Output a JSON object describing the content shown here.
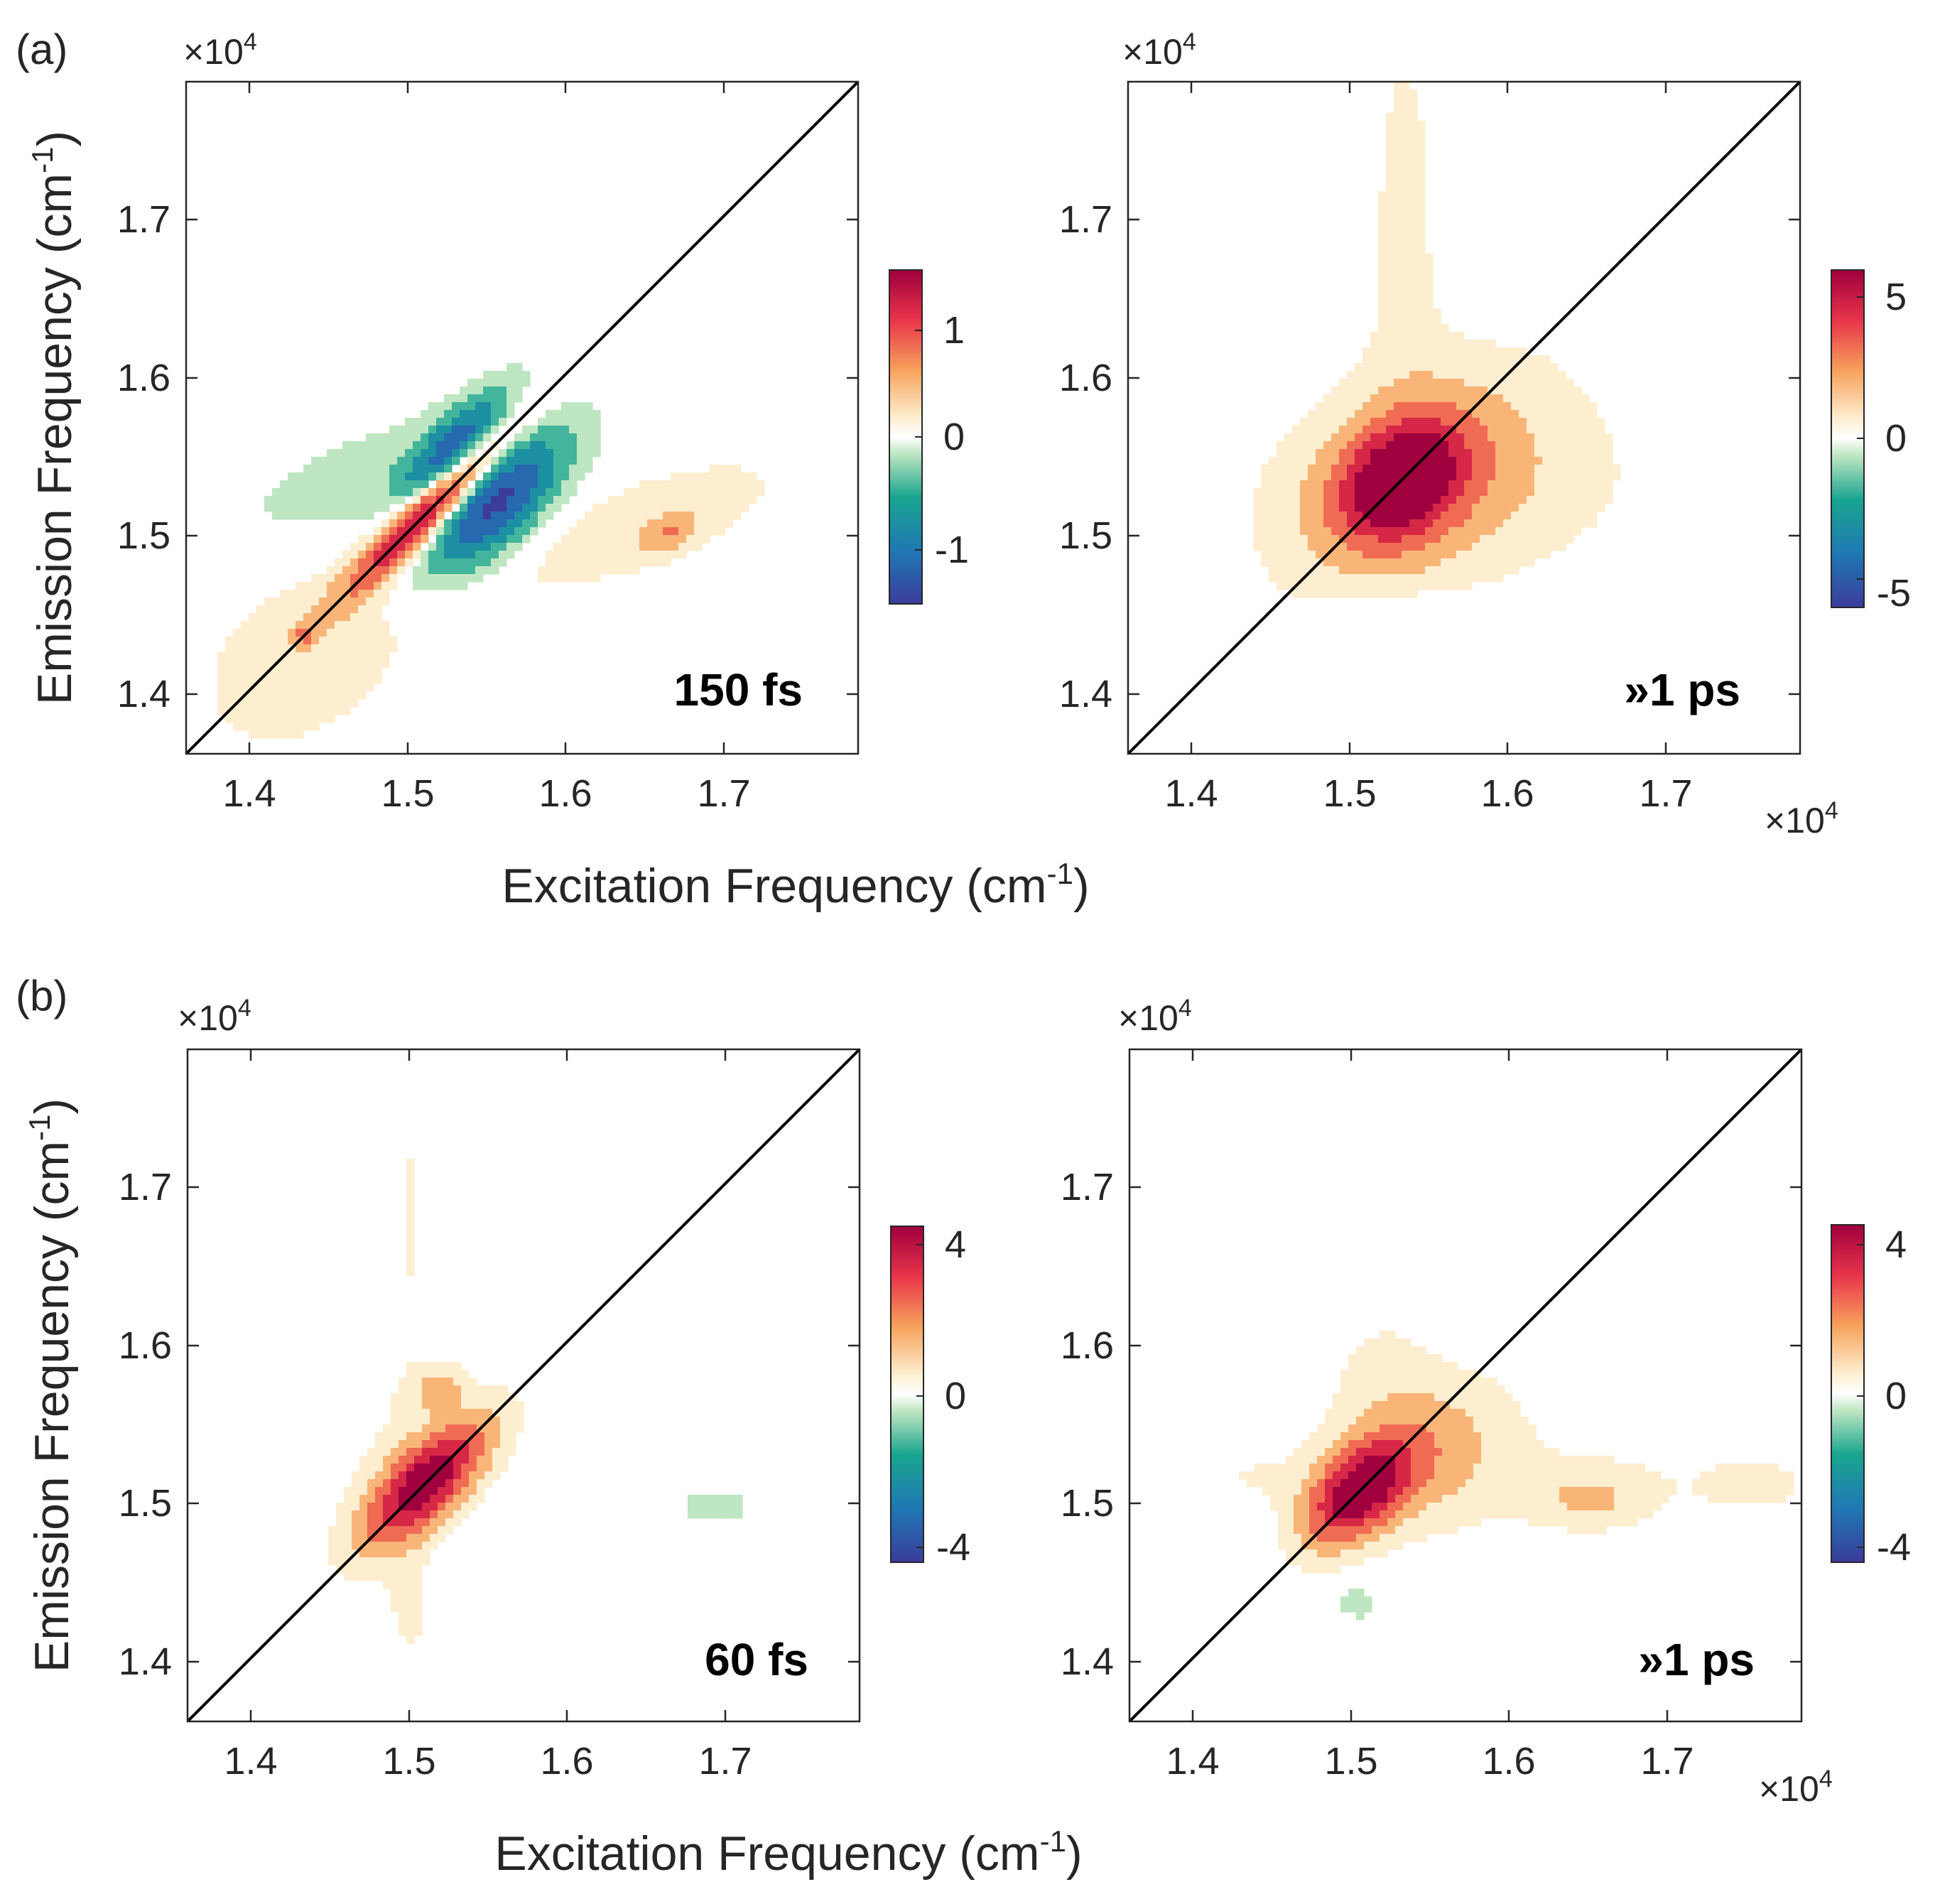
{
  "figure": {
    "panel_labels": [
      "(a)",
      "(b)"
    ],
    "axes": {
      "xlabel": "Excitation Frequency (cm",
      "ylabel": "Emission Frequency (cm",
      "unit_superscript": "-1",
      "unit_close": ")",
      "multiplier_base": "×10",
      "multiplier_exp": "4"
    }
  },
  "colors": {
    "neg_deep": "#3b3c9c",
    "neg_blue": "#1f78b4",
    "neg_teal": "#19a58f",
    "neg_light": "#bfe6c2",
    "zero": "#ffffff",
    "pos_light": "#fdeed0",
    "pos_orange": "#f7a25b",
    "pos_red": "#e8344a",
    "pos_deep": "#a0003e",
    "diagonal": "#000000"
  },
  "chart_data": [
    {
      "type": "heatmap",
      "id": "a-left",
      "panel": "(a)",
      "annotation": "150 fs",
      "xlabel": "Excitation Frequency (cm-1)",
      "ylabel": "Emission Frequency (cm-1)",
      "xlim": [
        13600,
        17850
      ],
      "ylim": [
        13600,
        17850
      ],
      "xticks": [
        14000,
        15000,
        16000,
        17000
      ],
      "yticks": [
        14000,
        15000,
        16000,
        17000
      ],
      "xtick_labels": [
        "1.4",
        "1.5",
        "1.6",
        "1.7"
      ],
      "ytick_labels": [
        "1.4",
        "1.5",
        "1.6",
        "1.7"
      ],
      "multiplier": "x10^4",
      "colorbar": {
        "range": [
          -1.5,
          1.5
        ],
        "ticks": [
          -1,
          0,
          1
        ],
        "tick_labels": [
          "-1",
          "0",
          "1"
        ]
      },
      "diagonal": true,
      "features": [
        {
          "x": 15150,
          "y": 15150,
          "sx": 480,
          "sy": 90,
          "angle": 45,
          "amp": 1.5
        },
        {
          "x": 15550,
          "y": 15180,
          "sx": 380,
          "sy": 170,
          "angle": 45,
          "amp": -1.3
        },
        {
          "x": 15300,
          "y": 15550,
          "sx": 300,
          "sy": 110,
          "angle": 45,
          "amp": -1.0
        },
        {
          "x": 14750,
          "y": 15300,
          "sx": 700,
          "sy": 260,
          "angle": 20,
          "amp": -0.22
        },
        {
          "x": 16500,
          "y": 15050,
          "sx": 700,
          "sy": 220,
          "angle": 20,
          "amp": 0.2
        },
        {
          "x": 16650,
          "y": 15000,
          "sx": 120,
          "sy": 70,
          "angle": 30,
          "amp": 0.45
        },
        {
          "x": 14400,
          "y": 14300,
          "sx": 700,
          "sy": 450,
          "angle": 45,
          "amp": 0.18
        },
        {
          "x": 14350,
          "y": 14350,
          "sx": 60,
          "sy": 50,
          "angle": 0,
          "amp": 0.45
        }
      ]
    },
    {
      "type": "heatmap",
      "id": "a-right",
      "panel": "(a)",
      "annotation": "»1 ps",
      "xlabel": "Excitation Frequency (cm-1)",
      "ylabel": "Emission Frequency (cm-1)",
      "xlim": [
        13600,
        17850
      ],
      "ylim": [
        13600,
        17850
      ],
      "xticks": [
        14000,
        15000,
        16000,
        17000
      ],
      "yticks": [
        14000,
        15000,
        16000,
        17000
      ],
      "xtick_labels": [
        "1.4",
        "1.5",
        "1.6",
        "1.7"
      ],
      "ytick_labels": [
        "1.4",
        "1.5",
        "1.6",
        "1.7"
      ],
      "multiplier": "x10^4",
      "colorbar": {
        "range": [
          -6,
          6
        ],
        "ticks": [
          -5,
          0,
          5
        ],
        "tick_labels": [
          "-5",
          "0",
          "5"
        ]
      },
      "diagonal": true,
      "features": [
        {
          "x": 15330,
          "y": 15330,
          "sx": 300,
          "sy": 220,
          "angle": 40,
          "amp": 6.0
        },
        {
          "x": 15450,
          "y": 15350,
          "sx": 650,
          "sy": 420,
          "angle": 30,
          "amp": 1.8
        },
        {
          "x": 15950,
          "y": 15250,
          "sx": 750,
          "sy": 350,
          "angle": 0,
          "amp": 0.45
        },
        {
          "x": 15350,
          "y": 17000,
          "sx": 200,
          "sy": 1200,
          "angle": 0,
          "amp": 0.55
        },
        {
          "x": 15300,
          "y": 14450,
          "sx": 280,
          "sy": 140,
          "angle": 0,
          "amp": -0.6
        }
      ]
    },
    {
      "type": "heatmap",
      "id": "b-left",
      "panel": "(b)",
      "annotation": "60 fs",
      "xlabel": "Excitation Frequency (cm-1)",
      "ylabel": "Emission Frequency (cm-1)",
      "xlim": [
        13600,
        17850
      ],
      "ylim": [
        13600,
        17850
      ],
      "xticks": [
        14000,
        15000,
        16000,
        17000
      ],
      "yticks": [
        14000,
        15000,
        16000,
        17000
      ],
      "xtick_labels": [
        "1.4",
        "1.5",
        "1.6",
        "1.7"
      ],
      "ytick_labels": [
        "1.4",
        "1.5",
        "1.6",
        "1.7"
      ],
      "multiplier": "x10^4",
      "colorbar": {
        "range": [
          -4.8,
          4.8
        ],
        "ticks": [
          -4,
          0,
          4
        ],
        "tick_labels": [
          "-4",
          "0",
          "4"
        ]
      },
      "diagonal": true,
      "features": [
        {
          "x": 15100,
          "y": 15100,
          "sx": 340,
          "sy": 140,
          "angle": 45,
          "amp": 4.8
        },
        {
          "x": 15000,
          "y": 16800,
          "sx": 140,
          "sy": 1300,
          "angle": 0,
          "amp": 0.35
        },
        {
          "x": 15200,
          "y": 15700,
          "sx": 120,
          "sy": 90,
          "angle": 30,
          "amp": 1.3
        },
        {
          "x": 14700,
          "y": 15300,
          "sx": 650,
          "sy": 280,
          "angle": 0,
          "amp": 0.22
        },
        {
          "x": 15000,
          "y": 14300,
          "sx": 150,
          "sy": 350,
          "angle": 0,
          "amp": 0.35
        },
        {
          "x": 16050,
          "y": 15000,
          "sx": 400,
          "sy": 160,
          "angle": 20,
          "amp": -0.3
        },
        {
          "x": 16950,
          "y": 14950,
          "sx": 300,
          "sy": 150,
          "angle": 0,
          "amp": -0.4
        },
        {
          "x": 17000,
          "y": 15500,
          "sx": 200,
          "sy": 80,
          "angle": 0,
          "amp": 0.25
        }
      ]
    },
    {
      "type": "heatmap",
      "id": "b-right",
      "panel": "(b)",
      "annotation": "»1 ps",
      "xlabel": "Excitation Frequency (cm-1)",
      "ylabel": "Emission Frequency (cm-1)",
      "xlim": [
        13600,
        17850
      ],
      "ylim": [
        13600,
        17850
      ],
      "xticks": [
        14000,
        15000,
        16000,
        17000
      ],
      "yticks": [
        14000,
        15000,
        16000,
        17000
      ],
      "xtick_labels": [
        "1.4",
        "1.5",
        "1.6",
        "1.7"
      ],
      "ytick_labels": [
        "1.4",
        "1.5",
        "1.6",
        "1.7"
      ],
      "multiplier": "x10^4",
      "colorbar": {
        "range": [
          -4.8,
          4.8
        ],
        "ticks": [
          -4,
          0,
          4
        ],
        "tick_labels": [
          "-4",
          "0",
          "4"
        ]
      },
      "diagonal": true,
      "features": [
        {
          "x": 15050,
          "y": 15050,
          "sx": 260,
          "sy": 150,
          "angle": 45,
          "amp": 4.6
        },
        {
          "x": 15400,
          "y": 15300,
          "sx": 400,
          "sy": 260,
          "angle": 30,
          "amp": 1.4
        },
        {
          "x": 16200,
          "y": 15100,
          "sx": 1100,
          "sy": 260,
          "angle": 0,
          "amp": 0.4
        },
        {
          "x": 16500,
          "y": 15000,
          "sx": 200,
          "sy": 100,
          "angle": 0,
          "amp": 0.9
        },
        {
          "x": 15200,
          "y": 15800,
          "sx": 250,
          "sy": 300,
          "angle": 0,
          "amp": 0.45
        },
        {
          "x": 14400,
          "y": 15150,
          "sx": 250,
          "sy": 100,
          "angle": 0,
          "amp": 0.25
        },
        {
          "x": 15050,
          "y": 14350,
          "sx": 120,
          "sy": 100,
          "angle": 0,
          "amp": -0.5
        },
        {
          "x": 17600,
          "y": 15100,
          "sx": 250,
          "sy": 130,
          "angle": 0,
          "amp": 0.3
        }
      ]
    }
  ]
}
